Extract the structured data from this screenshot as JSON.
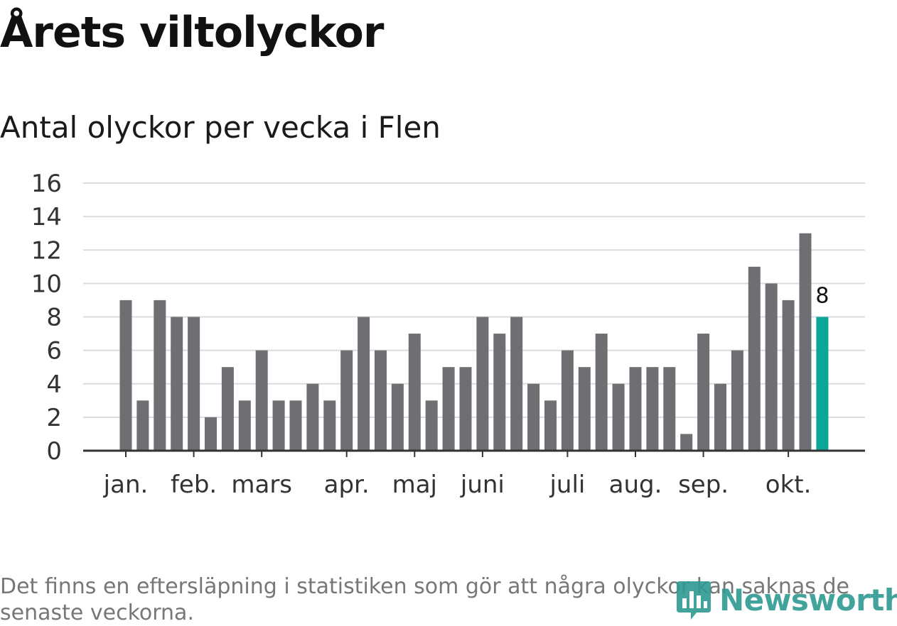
{
  "title": "Årets viltolyckor",
  "subtitle": "Antal olyckor per vecka i Flen",
  "footnote": "Det finns en eftersläpning i statistiken som gör att några olyckor kan saknas de senaste veckorna.",
  "logo": {
    "text": "Newsworthy"
  },
  "colors": {
    "bar": "#6f6e73",
    "highlight": "#0ba59a",
    "grid": "#dcdcdc",
    "axis": "#333333",
    "logo": "#2e9a93"
  },
  "chart_data": {
    "type": "bar",
    "title": "Årets viltolyckor",
    "subtitle": "Antal olyckor per vecka i Flen",
    "xlabel": "",
    "ylabel": "",
    "ylim": [
      0,
      16
    ],
    "yticks": [
      0,
      2,
      4,
      6,
      8,
      10,
      12,
      14,
      16
    ],
    "grid": true,
    "values": [
      9,
      3,
      9,
      8,
      8,
      2,
      5,
      3,
      6,
      3,
      3,
      4,
      3,
      6,
      8,
      6,
      4,
      7,
      3,
      5,
      5,
      8,
      7,
      8,
      4,
      3,
      6,
      5,
      7,
      4,
      5,
      5,
      5,
      1,
      7,
      4,
      6,
      11,
      10,
      9,
      13,
      8
    ],
    "highlight_index": 41,
    "highlight_label": "8",
    "month_labels": [
      {
        "label": "jan.",
        "week": 1
      },
      {
        "label": "feb.",
        "week": 5
      },
      {
        "label": "mars",
        "week": 9
      },
      {
        "label": "apr.",
        "week": 14
      },
      {
        "label": "maj",
        "week": 18
      },
      {
        "label": "juni",
        "week": 22
      },
      {
        "label": "juli",
        "week": 27
      },
      {
        "label": "aug.",
        "week": 31
      },
      {
        "label": "sep.",
        "week": 35
      },
      {
        "label": "okt.",
        "week": 40
      }
    ]
  }
}
